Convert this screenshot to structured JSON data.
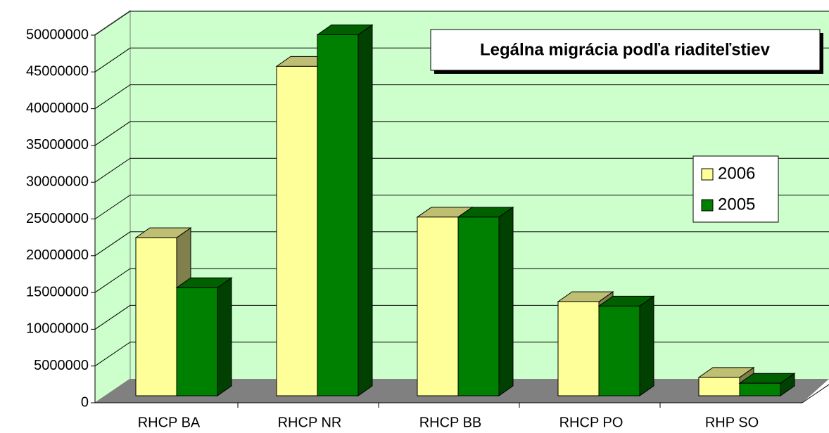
{
  "chart_data": {
    "type": "bar3d",
    "title": "Legálna migrácia podľa riaditeľstiev",
    "categories": [
      "RHCP BA",
      "RHCP NR",
      "RHCP BB",
      "RHCP PO",
      "RHP SO"
    ],
    "series": [
      {
        "name": "2006",
        "color": "#ffff99",
        "values": [
          21500000,
          44800000,
          24300000,
          12800000,
          2500000
        ]
      },
      {
        "name": "2005",
        "color": "#008000",
        "values": [
          14700000,
          49100000,
          24300000,
          12200000,
          1700000
        ]
      }
    ],
    "ylim": [
      0,
      50000000
    ],
    "yticks": [
      0,
      5000000,
      10000000,
      15000000,
      20000000,
      25000000,
      30000000,
      35000000,
      40000000,
      45000000,
      50000000
    ],
    "grid": true,
    "legend": "right"
  }
}
